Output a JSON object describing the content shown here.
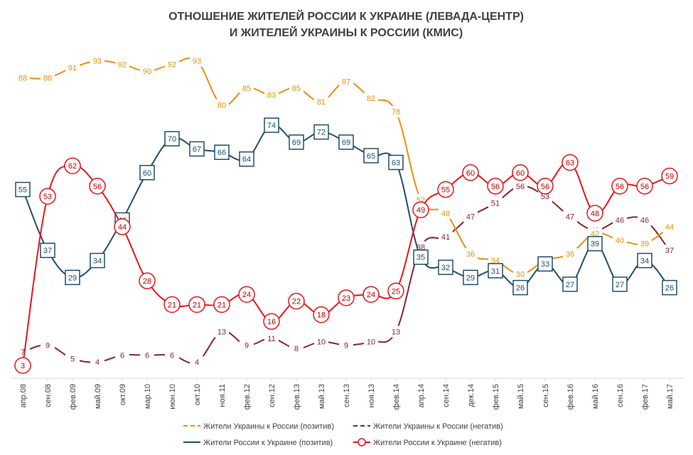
{
  "chart_data": {
    "type": "line",
    "title": [
      "ОТНОШЕНИЕ ЖИТЕЛЕЙ РОССИИ К УКРАИНЕ (ЛЕВАДА-ЦЕНТР)",
      "И ЖИТЕЛЕЙ УКРАИНЫ К РОССИИ (КМИС)"
    ],
    "xlabel": "",
    "ylabel": "",
    "grid": false,
    "legend_position": "bottom",
    "ylim": [
      0,
      100
    ],
    "categories": [
      "апр.08",
      "сен.08",
      "фев.09",
      "май.09",
      "окт.09",
      "мар.10",
      "июн.10",
      "окт.10",
      "ноя.11",
      "фев.12",
      "сен.12",
      "фев.13",
      "май.13",
      "сен.13",
      "ноя.13",
      "фев.14",
      "апр.14",
      "сен.14",
      "дек.14",
      "фев.15",
      "май.15",
      "сен.15",
      "фев.16",
      "май.16",
      "сен.16",
      "фев.17",
      "май.17"
    ],
    "series": [
      {
        "name": "Жители Украины к России (позитив)",
        "color": "#E8900A",
        "style": "dash-label",
        "values": [
          88,
          88,
          91,
          93,
          92,
          90,
          92,
          93,
          80,
          85,
          83,
          85,
          81,
          87,
          82,
          78,
          52,
          48,
          36,
          34,
          30,
          34,
          36,
          42,
          40,
          39,
          44
        ]
      },
      {
        "name": "Жители Украины к России (негатив)",
        "color": "#8B2232",
        "style": "dash-label",
        "values": [
          7,
          9,
          5,
          4,
          6,
          6,
          6,
          4,
          13,
          9,
          11,
          8,
          10,
          9,
          10,
          13,
          38,
          41,
          47,
          51,
          56,
          53,
          47,
          43,
          46,
          46,
          37
        ]
      },
      {
        "name": "Жители России к Украине (позитив)",
        "color": "#1F4E6B",
        "style": "square-marker",
        "values": [
          55,
          37,
          29,
          34,
          46,
          60,
          70,
          67,
          66,
          64,
          74,
          69,
          72,
          69,
          65,
          63,
          35,
          32,
          29,
          31,
          26,
          33,
          27,
          39,
          27,
          34,
          26
        ]
      },
      {
        "name": "Жители России к Украине (негатив)",
        "color": "#E8141C",
        "style": "circle-marker",
        "values": [
          3,
          53,
          62,
          56,
          44,
          28,
          21,
          21,
          21,
          24,
          16,
          22,
          18,
          23,
          24,
          25,
          49,
          55,
          60,
          56,
          60,
          56,
          63,
          48,
          56,
          56,
          59
        ]
      }
    ]
  }
}
